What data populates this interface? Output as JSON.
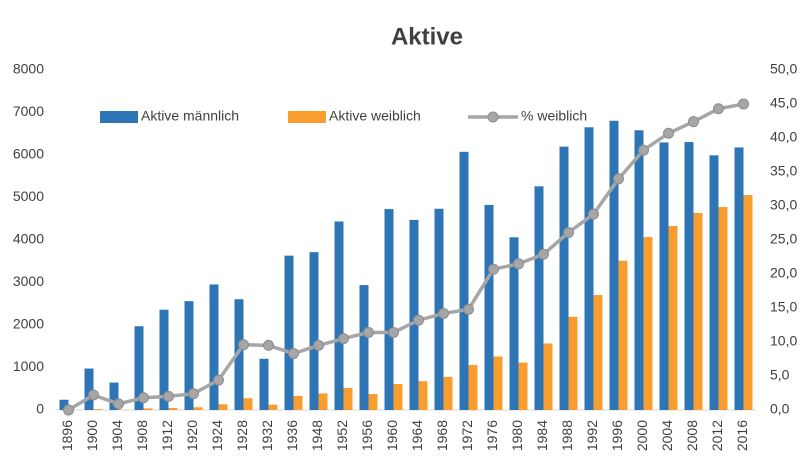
{
  "chart_data": {
    "type": "bar",
    "title": "Aktive",
    "categories": [
      "1896",
      "1900",
      "1904",
      "1908",
      "1912",
      "1920",
      "1924",
      "1928",
      "1932",
      "1936",
      "1948",
      "1952",
      "1956",
      "1960",
      "1964",
      "1968",
      "1972",
      "1976",
      "1980",
      "1984",
      "1988",
      "1992",
      "1996",
      "2000",
      "2004",
      "2008",
      "2012",
      "2016"
    ],
    "series": [
      {
        "name": "Aktive männlich",
        "color": "#2e75b6",
        "type": "bar",
        "values": [
          241,
          975,
          645,
          1971,
          2359,
          2561,
          2954,
          2606,
          1206,
          3632,
          3714,
          4436,
          2938,
          4727,
          4473,
          4735,
          6075,
          4824,
          4064,
          5263,
          6197,
          6652,
          6806,
          6582,
          6296,
          6305,
          5992,
          6178
        ]
      },
      {
        "name": "Aktive weiblich",
        "color": "#f99d2f",
        "type": "bar",
        "values": [
          0,
          22,
          6,
          37,
          48,
          65,
          135,
          277,
          126,
          331,
          390,
          519,
          376,
          611,
          678,
          781,
          1059,
          1260,
          1115,
          1566,
          2194,
          2704,
          3512,
          4069,
          4329,
          4637,
          4776,
          5059
        ]
      },
      {
        "name": "% weiblich",
        "color": "#a6a6a6",
        "type": "line",
        "axis": "y2",
        "values": [
          0,
          2.2,
          0.9,
          1.8,
          2.0,
          2.4,
          4.4,
          9.6,
          9.5,
          8.3,
          9.5,
          10.5,
          11.4,
          11.4,
          13.2,
          14.2,
          14.8,
          20.7,
          21.5,
          22.9,
          26.1,
          28.8,
          34.0,
          38.2,
          40.7,
          42.4,
          44.3,
          45.0
        ]
      }
    ],
    "ylim": [
      0,
      8000
    ],
    "yticks": [
      0,
      1000,
      2000,
      3000,
      4000,
      5000,
      6000,
      7000,
      8000
    ],
    "y2lim": [
      0,
      50
    ],
    "y2ticks": [
      {
        "value": 0,
        "label": "0,0"
      },
      {
        "value": 5,
        "label": "5,0"
      },
      {
        "value": 10,
        "label": "10,0"
      },
      {
        "value": 15,
        "label": "15,0"
      },
      {
        "value": 20,
        "label": "20,0"
      },
      {
        "value": 25,
        "label": "25,0"
      },
      {
        "value": 30,
        "label": "30,0"
      },
      {
        "value": 35,
        "label": "35,0"
      },
      {
        "value": 40,
        "label": "40,0"
      },
      {
        "value": 45,
        "label": "45,0"
      },
      {
        "value": 50,
        "label": "50,0"
      }
    ],
    "grid": false,
    "legend": "upper left"
  }
}
